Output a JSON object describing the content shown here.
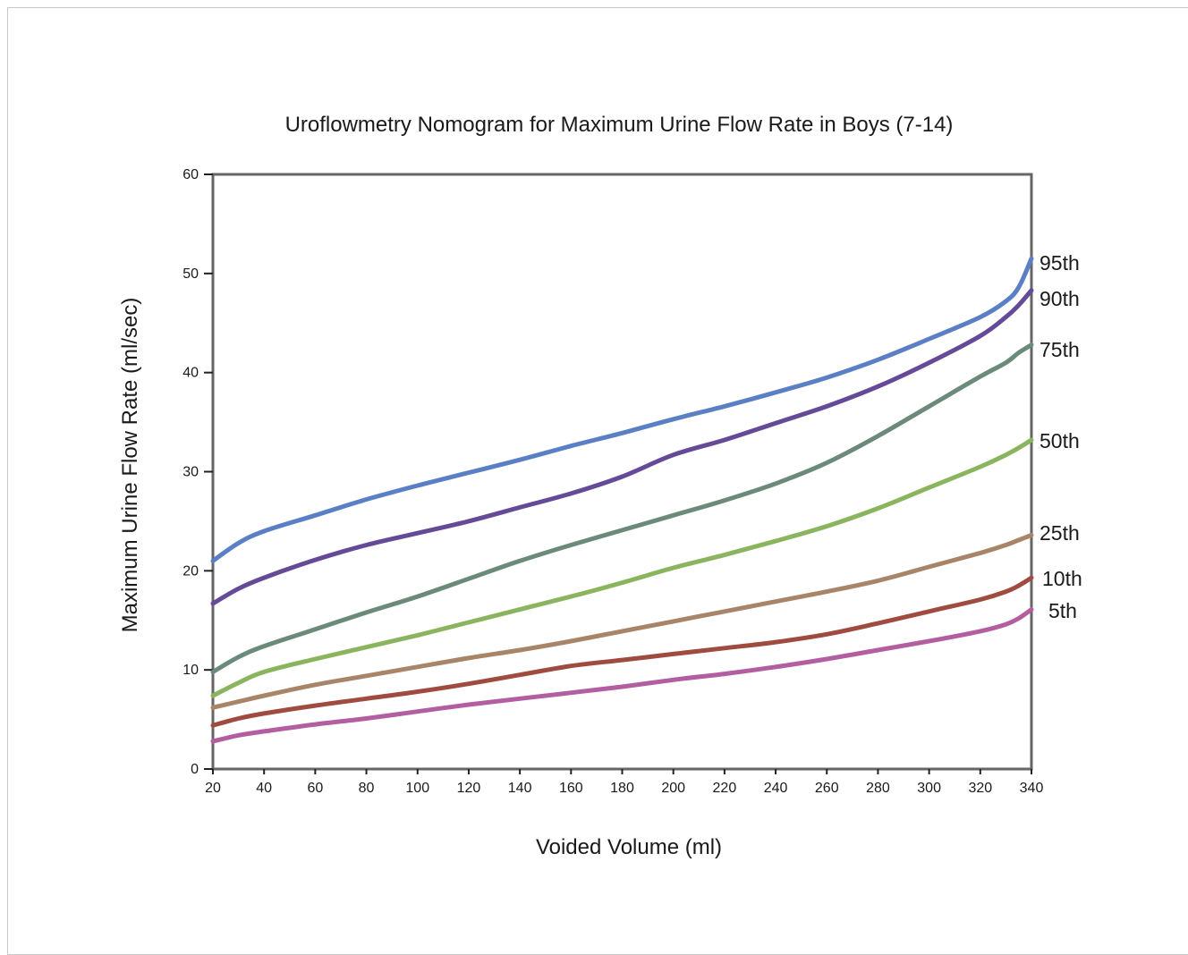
{
  "chart_data": {
    "type": "line",
    "title": "Uroflowmetry Nomogram for Maximum Urine Flow Rate in Boys (7-14)",
    "xlabel": "Voided Volume (ml)",
    "ylabel": "Maximum Urine Flow Rate (ml/sec)",
    "xlim": [
      20,
      340
    ],
    "ylim": [
      0,
      60
    ],
    "x_ticks": [
      20,
      40,
      60,
      80,
      100,
      120,
      140,
      160,
      180,
      200,
      220,
      240,
      260,
      280,
      300,
      320,
      340
    ],
    "y_ticks": [
      0,
      10,
      20,
      30,
      40,
      50,
      60
    ],
    "grid": false,
    "x": [
      20,
      30,
      40,
      60,
      80,
      100,
      120,
      140,
      160,
      180,
      200,
      220,
      240,
      260,
      280,
      300,
      320,
      330,
      335,
      340
    ],
    "series": [
      {
        "name": "95th",
        "color": "#5b7fc4",
        "values": [
          21,
          22.8,
          24,
          25.6,
          27.2,
          28.6,
          29.9,
          31.2,
          32.6,
          33.9,
          35.3,
          36.6,
          38,
          39.5,
          41.3,
          43.4,
          45.6,
          47.2,
          48.6,
          51.5
        ]
      },
      {
        "name": "90th",
        "color": "#654a98",
        "values": [
          16.7,
          18.2,
          19.3,
          21.1,
          22.6,
          23.8,
          25,
          26.4,
          27.8,
          29.5,
          31.7,
          33.2,
          34.9,
          36.6,
          38.6,
          41,
          43.7,
          45.6,
          46.8,
          48.3
        ]
      },
      {
        "name": "75th",
        "color": "#6b8a7a",
        "values": [
          9.8,
          11.3,
          12.4,
          14.1,
          15.8,
          17.4,
          19.2,
          21,
          22.6,
          24.1,
          25.6,
          27.1,
          28.8,
          30.9,
          33.6,
          36.6,
          39.6,
          41,
          42,
          42.8
        ]
      },
      {
        "name": "50th",
        "color": "#8ab45e",
        "values": [
          7.4,
          8.7,
          9.8,
          11.1,
          12.3,
          13.5,
          14.8,
          16.1,
          17.4,
          18.8,
          20.3,
          21.6,
          23,
          24.5,
          26.3,
          28.4,
          30.5,
          31.7,
          32.4,
          33.2
        ]
      },
      {
        "name": "25th",
        "color": "#a88469",
        "values": [
          6.2,
          6.8,
          7.4,
          8.5,
          9.4,
          10.3,
          11.2,
          12,
          12.9,
          13.9,
          14.9,
          15.9,
          16.9,
          17.9,
          19,
          20.4,
          21.8,
          22.6,
          23.1,
          23.6
        ]
      },
      {
        "name": "10th",
        "color": "#a04b3f",
        "values": [
          4.4,
          5.1,
          5.6,
          6.4,
          7.1,
          7.8,
          8.6,
          9.5,
          10.4,
          11,
          11.6,
          12.2,
          12.8,
          13.6,
          14.7,
          15.9,
          17.1,
          17.9,
          18.5,
          19.3
        ]
      },
      {
        "name": "5th",
        "color": "#b25ea0",
        "values": [
          2.8,
          3.4,
          3.8,
          4.5,
          5.1,
          5.8,
          6.5,
          7.1,
          7.7,
          8.3,
          9,
          9.6,
          10.3,
          11.1,
          12,
          12.9,
          13.9,
          14.6,
          15.2,
          16.1
        ]
      }
    ]
  }
}
